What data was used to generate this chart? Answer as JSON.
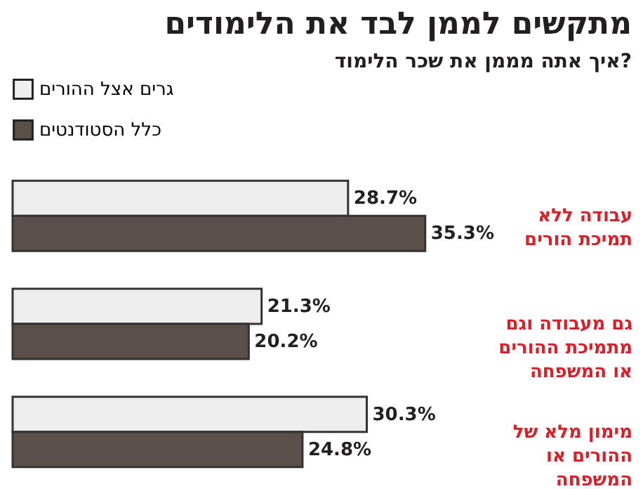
{
  "chart_data": {
    "type": "bar",
    "orientation": "horizontal",
    "title": "מתקשים לממן לבד את הלימודים",
    "subtitle": "איך אתה מממן את שכר הלימוד?",
    "categories": [
      "עבודה ללא תמיכת הורים",
      "גם מעבודה וגם מתמיכת ההורים או המשפחה",
      "מימון מלא של ההורים או המשפחה"
    ],
    "series": [
      {
        "name": "גרים אצל ההורים",
        "color": "#eeeeee",
        "values": [
          28.7,
          21.3,
          30.3
        ],
        "value_labels": [
          "28.7%",
          "21.3%",
          "30.3%"
        ]
      },
      {
        "name": "כלל הסטודנטים",
        "color": "#5b4f49",
        "values": [
          35.3,
          20.2,
          24.8
        ],
        "value_labels": [
          "35.3%",
          "20.2%",
          "24.8%"
        ]
      }
    ],
    "legend": "top left"
  }
}
